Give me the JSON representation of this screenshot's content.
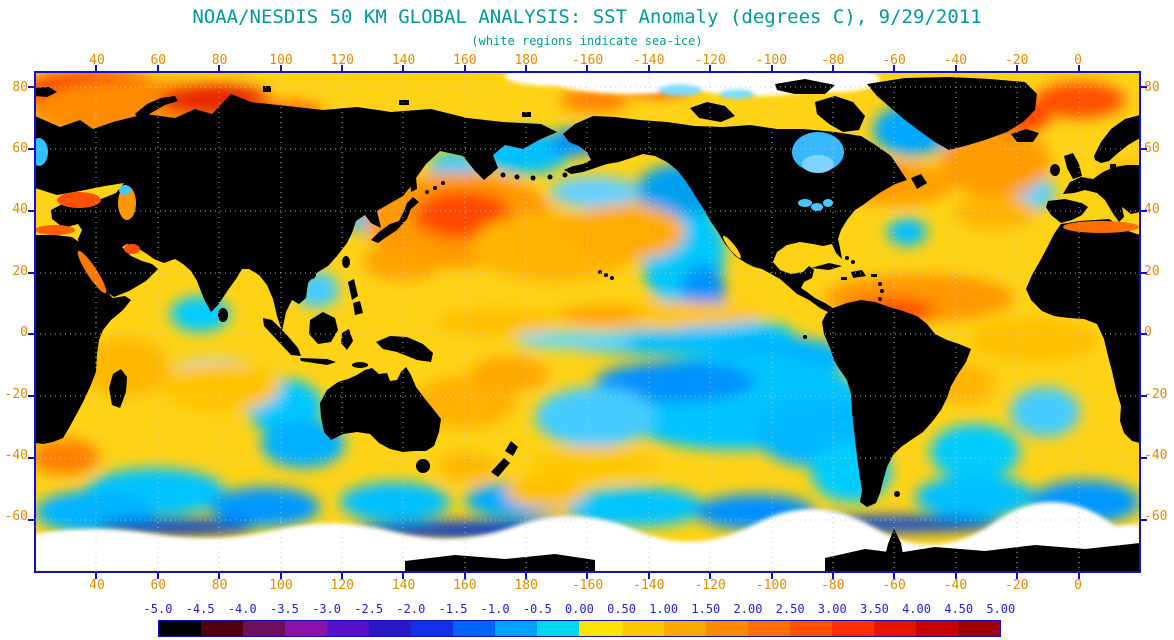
{
  "title": "NOAA/NESDIS 50 KM GLOBAL ANALYSIS: SST Anomaly (degrees C), 9/29/2011",
  "subtitle": "(white regions indicate sea-ice)",
  "colors": {
    "title_text": "#009898",
    "axis_labels": "#dd8b00",
    "axis_frame": "#1111cc",
    "colorbar_labels": "#2222cc",
    "land": "#000000",
    "sea_ice": "#ffffff",
    "warm_base_ocean": "#fed316"
  },
  "axes": {
    "lon_labels": [
      "40",
      "60",
      "80",
      "100",
      "120",
      "140",
      "160",
      "180",
      "-160",
      "-140",
      "-120",
      "-100",
      "-80",
      "-60",
      "-40",
      "-20",
      "0"
    ],
    "lat_labels": [
      "80",
      "60",
      "40",
      "20",
      "0",
      "-20",
      "-40",
      "-60"
    ]
  },
  "colorbar": {
    "tick_labels": [
      "-5.0",
      "-4.5",
      "-4.0",
      "-3.5",
      "-3.0",
      "-2.5",
      "-2.0",
      "-1.5",
      "-1.0",
      "-0.5",
      "0.00",
      "0.50",
      "1.00",
      "1.50",
      "2.00",
      "2.50",
      "3.00",
      "3.50",
      "4.00",
      "4.50",
      "5.00"
    ],
    "segment_colors": [
      "#000000",
      "#50000a",
      "#6e0f5e",
      "#8a12a8",
      "#5a10c8",
      "#2a18c8",
      "#1430e6",
      "#0064ff",
      "#00a2ff",
      "#00d8f0",
      "#ffe400",
      "#ffc800",
      "#ffa800",
      "#ff8c00",
      "#ff7000",
      "#ff5000",
      "#ff3000",
      "#e61400",
      "#c80000",
      "#a00000"
    ]
  }
}
